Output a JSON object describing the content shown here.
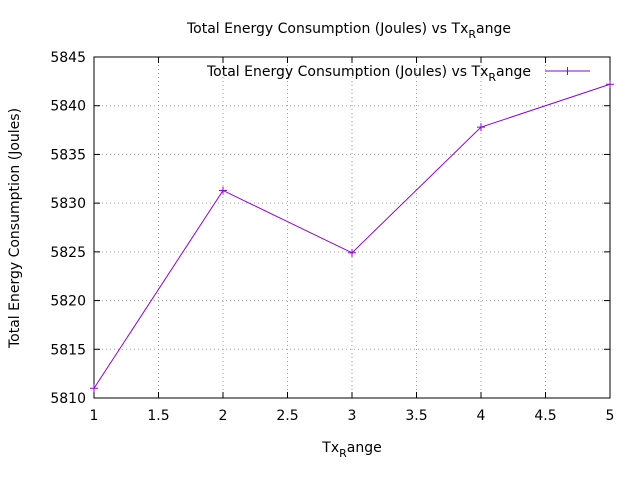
{
  "chart_data": {
    "type": "line",
    "title_main": "Total Energy Consumption (Joules) vs Tx",
    "title_sub": "R",
    "title_tail": "ange",
    "xlabel_main": "Tx",
    "xlabel_sub": "R",
    "xlabel_tail": "ange",
    "ylabel": "Total Energy Consumption (Joules)",
    "xlim": [
      1,
      5
    ],
    "ylim": [
      5810,
      5845
    ],
    "xticks": [
      1,
      1.5,
      2,
      2.5,
      3,
      3.5,
      4,
      4.5,
      5
    ],
    "xtick_labels": [
      "1",
      "1.5",
      "2",
      "2.5",
      "3",
      "3.5",
      "4",
      "4.5",
      "5"
    ],
    "yticks": [
      5810,
      5815,
      5820,
      5825,
      5830,
      5835,
      5840,
      5845
    ],
    "ytick_labels": [
      "5810",
      "5815",
      "5820",
      "5825",
      "5830",
      "5835",
      "5840",
      "5845"
    ],
    "grid": true,
    "legend_position": "top-right",
    "series": [
      {
        "legend_main": "Total Energy Consumption (Joules) vs Tx",
        "legend_sub": "R",
        "legend_tail": "ange",
        "color": "#9400d3",
        "marker": "plus",
        "x": [
          1,
          2,
          3,
          4,
          5
        ],
        "y": [
          5811.0,
          5831.3,
          5824.9,
          5837.8,
          5842.2
        ]
      }
    ]
  }
}
